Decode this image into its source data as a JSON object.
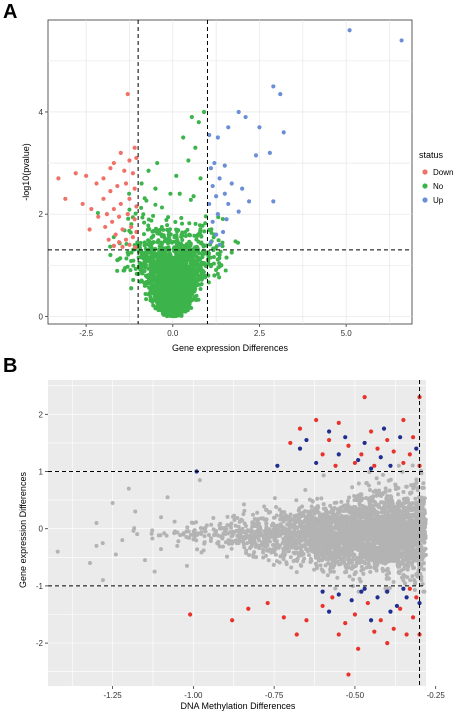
{
  "figure": {
    "panel_a_letter": "A",
    "panel_b_letter": "B"
  },
  "chart_data": [
    {
      "type": "scatter",
      "title": "",
      "xlabel": "Gene expression Differences",
      "ylabel": "-log10(pvalue)",
      "xlim": [
        -3.6,
        6.9
      ],
      "ylim": [
        -0.15,
        5.8
      ],
      "x_ticks": [
        -2.5,
        0.0,
        2.5,
        5.0
      ],
      "x_tick_labels": [
        "-2.5",
        "0.0",
        "2.5",
        "5.0"
      ],
      "y_ticks": [
        0,
        2,
        4
      ],
      "y_tick_labels": [
        "0",
        "2",
        "4"
      ],
      "grid": true,
      "background": "#ffffff",
      "thresholds": {
        "vlines": [
          -1,
          1
        ],
        "hline": 1.3
      },
      "legend": {
        "title": "status",
        "position": "right",
        "entries": [
          {
            "label": "Down",
            "color": "#f07167"
          },
          {
            "label": "No",
            "color": "#3cb44b"
          },
          {
            "label": "Up",
            "color": "#6b8fd6"
          }
        ]
      },
      "series": [
        {
          "name": "Down",
          "color": "#f07167",
          "points": [
            [
              -1.3,
              4.35
            ],
            [
              -1.1,
              3.3
            ],
            [
              -1.5,
              3.2
            ],
            [
              -1.25,
              3.05
            ],
            [
              -1.05,
              3.1
            ],
            [
              -1.7,
              3.0
            ],
            [
              -3.3,
              2.7
            ],
            [
              -2.8,
              2.8
            ],
            [
              -2.5,
              2.75
            ],
            [
              -3.1,
              2.3
            ],
            [
              -2.2,
              2.6
            ],
            [
              -2.0,
              2.7
            ],
            [
              -1.8,
              2.9
            ],
            [
              -1.4,
              2.85
            ],
            [
              -1.15,
              2.8
            ],
            [
              -2.6,
              2.2
            ],
            [
              -2.35,
              2.1
            ],
            [
              -2.0,
              2.3
            ],
            [
              -1.8,
              2.45
            ],
            [
              -1.6,
              2.55
            ],
            [
              -1.35,
              2.6
            ],
            [
              -1.1,
              2.5
            ],
            [
              -2.15,
              1.95
            ],
            [
              -1.9,
              2.0
            ],
            [
              -1.7,
              2.1
            ],
            [
              -1.5,
              2.2
            ],
            [
              -1.25,
              2.3
            ],
            [
              -1.05,
              2.15
            ],
            [
              -2.4,
              1.7
            ],
            [
              -1.95,
              1.75
            ],
            [
              -1.75,
              1.85
            ],
            [
              -1.55,
              1.95
            ],
            [
              -1.3,
              2.0
            ],
            [
              -1.1,
              1.9
            ],
            [
              -1.65,
              1.6
            ],
            [
              -1.45,
              1.7
            ],
            [
              -1.2,
              1.75
            ],
            [
              -1.05,
              1.65
            ],
            [
              -1.85,
              1.5
            ],
            [
              -1.55,
              1.45
            ],
            [
              -1.35,
              1.5
            ],
            [
              -1.15,
              1.55
            ],
            [
              -1.7,
              1.38
            ],
            [
              -1.45,
              1.36
            ],
            [
              -1.25,
              1.4
            ],
            [
              -1.08,
              1.35
            ]
          ]
        },
        {
          "name": "No",
          "color": "#3cb44b",
          "points": [
            [
              0.9,
              4.0
            ],
            [
              0.55,
              3.9
            ],
            [
              0.75,
              3.8
            ],
            [
              0.3,
              3.5
            ],
            [
              0.65,
              3.3
            ],
            [
              0.45,
              3.05
            ],
            [
              -0.45,
              3.0
            ],
            [
              -0.7,
              2.85
            ],
            [
              0.1,
              2.75
            ],
            [
              0.8,
              2.7
            ],
            [
              -0.9,
              2.6
            ],
            [
              -0.5,
              2.5
            ],
            [
              0.2,
              2.4
            ],
            [
              0.6,
              2.35
            ],
            [
              -1.2,
              0.55
            ],
            [
              -1.4,
              0.9
            ],
            [
              -1.6,
              1.1
            ],
            [
              -1.8,
              1.2
            ],
            [
              1.2,
              0.8
            ],
            [
              1.4,
              1.0
            ],
            [
              1.55,
              1.15
            ],
            [
              1.7,
              1.25
            ],
            [
              1.35,
              1.2
            ],
            [
              -1.3,
              1.25
            ]
          ]
        },
        {
          "name": "Up",
          "color": "#6b8fd6",
          "points": [
            [
              5.1,
              5.6
            ],
            [
              6.6,
              5.4
            ],
            [
              2.9,
              4.5
            ],
            [
              3.1,
              4.35
            ],
            [
              1.9,
              4.0
            ],
            [
              2.1,
              3.9
            ],
            [
              1.6,
              3.7
            ],
            [
              2.5,
              3.7
            ],
            [
              1.3,
              3.5
            ],
            [
              1.05,
              3.55
            ],
            [
              3.2,
              3.6
            ],
            [
              2.8,
              3.2
            ],
            [
              2.4,
              3.15
            ],
            [
              1.2,
              3.0
            ],
            [
              1.1,
              2.9
            ],
            [
              1.5,
              2.95
            ],
            [
              1.35,
              2.7
            ],
            [
              1.7,
              2.6
            ],
            [
              1.15,
              2.55
            ],
            [
              2.0,
              2.5
            ],
            [
              1.5,
              2.4
            ],
            [
              1.25,
              2.35
            ],
            [
              1.6,
              2.2
            ],
            [
              1.05,
              2.2
            ],
            [
              2.2,
              2.25
            ],
            [
              2.9,
              2.25
            ],
            [
              1.3,
              2.0
            ],
            [
              1.9,
              2.05
            ],
            [
              1.55,
              1.9
            ],
            [
              1.15,
              1.85
            ],
            [
              1.25,
              1.6
            ],
            [
              1.45,
              1.65
            ],
            [
              1.1,
              1.45
            ],
            [
              1.35,
              1.4
            ]
          ]
        }
      ],
      "dense_cloud": {
        "series": "No",
        "color": "#3cb44b",
        "description": "dense volcano-shaped cluster of non-significant genes",
        "x_range": [
          -2.2,
          2.0
        ],
        "y_range": [
          0.0,
          2.4
        ]
      }
    },
    {
      "type": "scatter",
      "title": "",
      "xlabel": "DNA Methylation Differences",
      "ylabel": "Gene expression Differences",
      "xlim": [
        -1.45,
        -0.28
      ],
      "ylim": [
        -2.75,
        2.6
      ],
      "x_ticks": [
        -1.25,
        -1.0,
        -0.75,
        -0.5,
        -0.25
      ],
      "x_tick_labels": [
        "-1.25",
        "-1.00",
        "-0.75",
        "-0.50",
        "-0.25"
      ],
      "y_ticks": [
        -2,
        -1,
        0,
        1,
        2
      ],
      "y_tick_labels": [
        "-2",
        "-1",
        "0",
        "1",
        "2"
      ],
      "grid": true,
      "background": "#ebebeb",
      "thresholds": {
        "hlines": [
          1,
          -1
        ],
        "vline": -0.3
      },
      "series": [
        {
          "name": "",
          "color": "#e8322b",
          "points": [
            [
              -0.47,
              2.3
            ],
            [
              -0.3,
              2.3
            ],
            [
              -0.62,
              1.9
            ],
            [
              -0.35,
              1.9
            ],
            [
              -0.55,
              1.85
            ],
            [
              -0.67,
              1.75
            ],
            [
              -0.45,
              1.7
            ],
            [
              -0.58,
              1.55
            ],
            [
              -0.4,
              1.55
            ],
            [
              -0.32,
              1.6
            ],
            [
              -0.52,
              1.45
            ],
            [
              -0.7,
              1.5
            ],
            [
              -0.38,
              1.35
            ],
            [
              -0.6,
              1.3
            ],
            [
              -0.48,
              1.3
            ],
            [
              -0.43,
              1.4
            ],
            [
              -0.33,
              1.3
            ],
            [
              -0.5,
              1.15
            ],
            [
              -0.35,
              1.15
            ],
            [
              -0.44,
              1.1
            ],
            [
              -0.56,
              1.1
            ],
            [
              -0.3,
              1.1
            ],
            [
              -1.01,
              -1.5
            ],
            [
              -0.88,
              -1.6
            ],
            [
              -0.77,
              -1.3
            ],
            [
              -0.72,
              -1.55
            ],
            [
              -0.65,
              -1.6
            ],
            [
              -0.6,
              -1.35
            ],
            [
              -0.55,
              -1.85
            ],
            [
              -0.5,
              -1.5
            ],
            [
              -0.46,
              -1.3
            ],
            [
              -0.42,
              -1.6
            ],
            [
              -0.38,
              -1.75
            ],
            [
              -0.34,
              -1.85
            ],
            [
              -0.3,
              -1.85
            ],
            [
              -0.32,
              -1.55
            ],
            [
              -0.36,
              -1.4
            ],
            [
              -0.44,
              -1.8
            ],
            [
              -0.53,
              -1.65
            ],
            [
              -0.57,
              -1.2
            ],
            [
              -0.68,
              -1.85
            ],
            [
              -0.83,
              -1.4
            ],
            [
              -0.49,
              -2.1
            ],
            [
              -0.4,
              -2.0
            ],
            [
              -0.31,
              -1.2
            ],
            [
              -0.33,
              -1.05
            ],
            [
              -0.52,
              -2.55
            ]
          ]
        },
        {
          "name": "",
          "color": "#1f2e8f",
          "points": [
            [
              -0.67,
              1.4
            ],
            [
              -0.65,
              1.55
            ],
            [
              -0.58,
              1.7
            ],
            [
              -0.53,
              1.6
            ],
            [
              -0.47,
              1.5
            ],
            [
              -0.41,
              1.75
            ],
            [
              -0.36,
              1.6
            ],
            [
              -0.62,
              1.15
            ],
            [
              -0.55,
              1.3
            ],
            [
              -0.49,
              1.2
            ],
            [
              -0.45,
              1.05
            ],
            [
              -0.42,
              1.25
            ],
            [
              -0.31,
              1.4
            ],
            [
              -0.39,
              1.1
            ],
            [
              -0.74,
              1.1
            ],
            [
              -0.6,
              -1.1
            ],
            [
              -0.55,
              -1.15
            ],
            [
              -0.51,
              -1.25
            ],
            [
              -0.47,
              -1.05
            ],
            [
              -0.43,
              -1.2
            ],
            [
              -0.4,
              -1.1
            ],
            [
              -0.37,
              -1.35
            ],
            [
              -0.34,
              -1.2
            ],
            [
              -0.3,
              -1.3
            ],
            [
              -0.45,
              -1.6
            ],
            [
              -0.58,
              -1.45
            ],
            [
              -0.39,
              -1.45
            ],
            [
              -0.48,
              -1.1
            ],
            [
              -0.35,
              -1.05
            ],
            [
              -0.99,
              1.0
            ]
          ]
        }
      ],
      "dense_cloud": {
        "color": "#b3b3b3",
        "description": "dense grey cloud of genes",
        "x_range": [
          -1.42,
          -0.28
        ],
        "y_range": [
          -1.1,
          1.15
        ]
      }
    }
  ]
}
